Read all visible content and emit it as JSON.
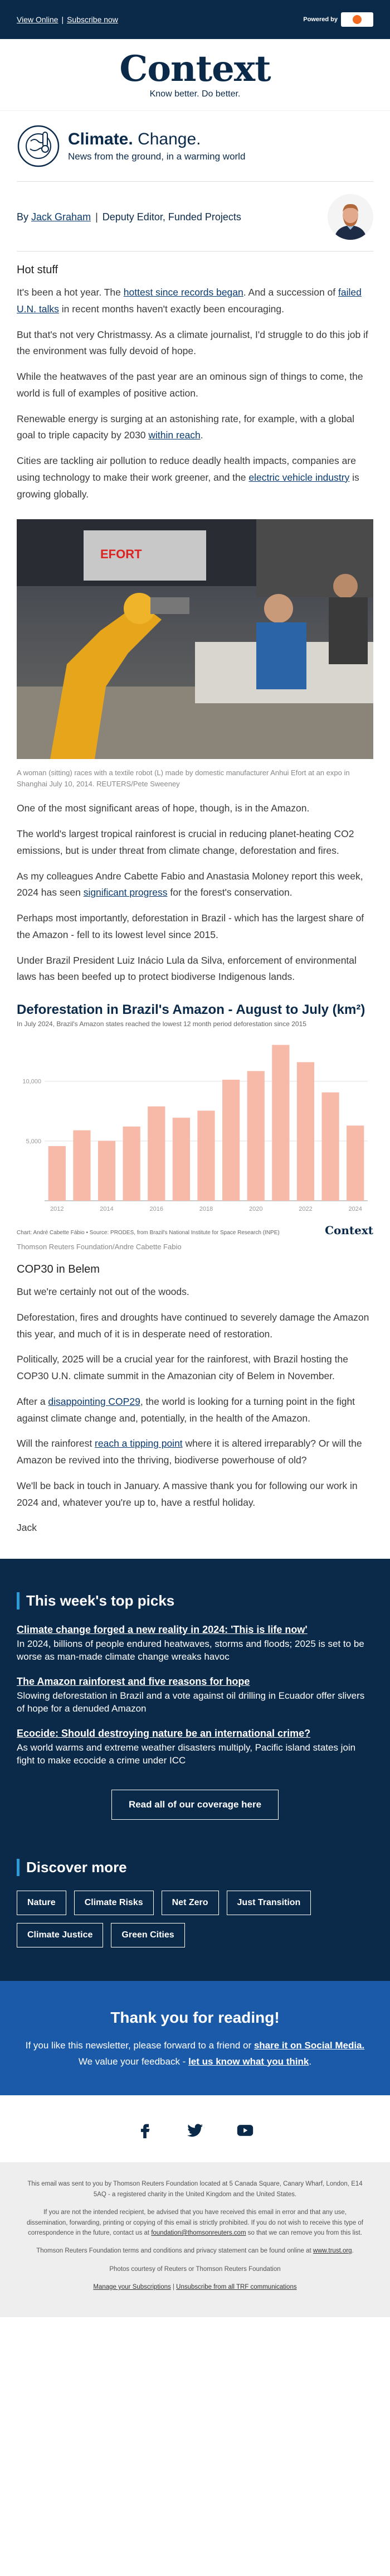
{
  "topbar": {
    "view_online": "View Online",
    "subscribe": "Subscribe now",
    "separator": "|",
    "powered_by": "Powered by"
  },
  "masthead": {
    "logo": "Context",
    "tagline": "Know better. Do better."
  },
  "newsletter": {
    "title_bold": "Climate.",
    "title_light": "Change.",
    "subtitle": "News from the ground, in a warming world"
  },
  "byline": {
    "by": "By",
    "author": "Jack Graham",
    "separator": "|",
    "role": "Deputy Editor, Funded Projects"
  },
  "section1": {
    "heading": "Hot stuff",
    "p1_a": "It's been a hot year. The ",
    "p1_link": "hottest since records began",
    "p1_b": ". And a succession of ",
    "p1_link2": "failed U.N. talks",
    "p1_c": " in recent months haven't exactly been encouraging.",
    "p2": "But that's not very Christmassy. As a climate journalist, I'd struggle to do this job if the environment was fully devoid of hope.",
    "p3": "While the heatwaves of the past year are an ominous sign of things to come, the world is full of examples of positive action.",
    "p4_a": "Renewable energy is surging at an astonishing rate, for example, with a global goal to triple capacity by 2030 ",
    "p4_link": "within reach",
    "p4_b": ".",
    "p5_a": "Cities are tackling air pollution to reduce deadly health impacts, companies are using technology to make their work greener, and the ",
    "p5_link": "electric vehicle industry",
    "p5_b": " is growing globally."
  },
  "photo": {
    "caption": "A woman (sitting) races with a textile robot (L) made by domestic manufacturer Anhui Efort at an expo in Shanghai July 10, 2014. REUTERS/Pete Sweeney",
    "sign_text": "EFORT"
  },
  "section2": {
    "p1": "One of the most significant areas of hope, though, is in the Amazon.",
    "p2": "The world's largest tropical rainforest is crucial in reducing planet-heating CO2 emissions, but is under threat from climate change, deforestation and fires.",
    "p3_a": "As my colleagues Andre Cabette Fabio and Anastasia Moloney report this week, 2024 has seen ",
    "p3_link": "significant progress",
    "p3_b": " for the forest's conservation.",
    "p4": "Perhaps most importantly, deforestation in Brazil - which has the largest share of the Amazon - fell to its lowest level since 2015.",
    "p5": "Under Brazil President Luiz Inácio Lula da Silva, enforcement of environmental laws has been beefed up to protect biodiverse Indigenous lands."
  },
  "chart_data": {
    "type": "bar",
    "title": "Deforestation in Brazil's Amazon - August to July (km²)",
    "subtitle": "In July 2024, Brazil's Amazon states reached the lowest 12 month period deforestation since 2015",
    "categories": [
      "2012",
      "2013",
      "2014",
      "2015",
      "2016",
      "2017",
      "2018",
      "2019",
      "2020",
      "2021",
      "2022",
      "2023",
      "2024"
    ],
    "values": [
      4571,
      5891,
      5012,
      6207,
      7893,
      6947,
      7536,
      10129,
      10851,
      13038,
      11594,
      9064,
      6288
    ],
    "x_tick_labels": [
      "2012",
      "2014",
      "2016",
      "2018",
      "2020",
      "2022",
      "2024"
    ],
    "y_ticks": [
      5000,
      10000
    ],
    "y_tick_labels": [
      "5,000",
      "10,000"
    ],
    "ylim": [
      0,
      14000
    ],
    "color": "#f7b9a8",
    "source": "Chart: André Cabette Fábio • Source: PRODES, from Brazil's National Institute for Space Research (INPE)",
    "logo": "Context",
    "credit": "Thomson Reuters Foundation/Andre Cabette Fabio"
  },
  "section3": {
    "heading": "COP30 in Belem",
    "p1": "But we're certainly not out of the woods.",
    "p2": "Deforestation, fires and droughts have continued to severely damage the Amazon this year, and much of it is in desperate need of restoration.",
    "p3": "Politically, 2025 will be a crucial year for the rainforest, with Brazil hosting the COP30 U.N. climate summit in the Amazonian city of Belem in November.",
    "p4_a": "After a ",
    "p4_link": "disappointing COP29",
    "p4_b": ", the world is looking for a turning point in the fight against climate change and, potentially, in the health of the Amazon.",
    "p5_a": "Will the rainforest ",
    "p5_link": "reach a tipping point",
    "p5_b": " where it is altered irreparably? Or will the Amazon be revived into the thriving, biodiverse powerhouse of old?",
    "p6": "We'll be back in touch in January. A massive thank you for following our work in 2024 and, whatever you're up to, have a restful holiday.",
    "signoff": "Jack"
  },
  "picks": {
    "title": "This week's top picks",
    "items": [
      {
        "headline": "Climate change forged a new reality in 2024: 'This is life now'",
        "desc": "In 2024, billions of people endured heatwaves, storms and floods; 2025 is set to be worse as man-made climate change wreaks havoc"
      },
      {
        "headline": "The Amazon rainforest and five reasons for hope",
        "desc": "Slowing deforestation in Brazil and a vote against oil drilling in Ecuador offer slivers of hope for a denuded Amazon"
      },
      {
        "headline": "Ecocide: Should destroying nature be an international crime?",
        "desc": "As world warms and extreme weather disasters multiply, Pacific island states join fight to make ecocide a crime under ICC"
      }
    ],
    "button": "Read all of our coverage here"
  },
  "discover": {
    "title": "Discover more",
    "chips": [
      "Nature",
      "Climate Risks",
      "Net Zero",
      "Just Transition",
      "Climate Justice",
      "Green Cities"
    ]
  },
  "thanks": {
    "title": "Thank you for reading!",
    "line1_a": "If you like this newsletter, please forward to a friend or ",
    "line1_link": "share it on Social Media.",
    "line2_a": "We value your feedback - ",
    "line2_link": "let us know what you think",
    "line2_b": "."
  },
  "social": [
    "facebook-icon",
    "twitter-icon",
    "youtube-icon"
  ],
  "footer": {
    "p1": "This email was sent to you by Thomson Reuters Foundation located at 5 Canada Square, Canary Wharf, London, E14 5AQ - a registered charity in the United Kingdom and the United States.",
    "p2_a": "If you are not the intended recipient, be advised that you have received this email in error and that any use, dissemination, forwarding, printing or copying of this email is strictly prohibited. If you do not wish to receive this type of correspondence in the future, contact us at ",
    "p2_link": "foundation@thomsonreuters.com",
    "p2_b": " so that we can remove you from this list.",
    "p3_a": "Thomson Reuters Foundation terms and conditions and privacy statement can be found online at ",
    "p3_link": "www.trust.org",
    "p3_b": ".",
    "p4": "Photos courtesy of Reuters or Thomson Reuters Foundation",
    "manage": "Manage your Subscriptions",
    "sep": "|",
    "unsubscribe": "Unsubscribe from all TRF communications"
  }
}
